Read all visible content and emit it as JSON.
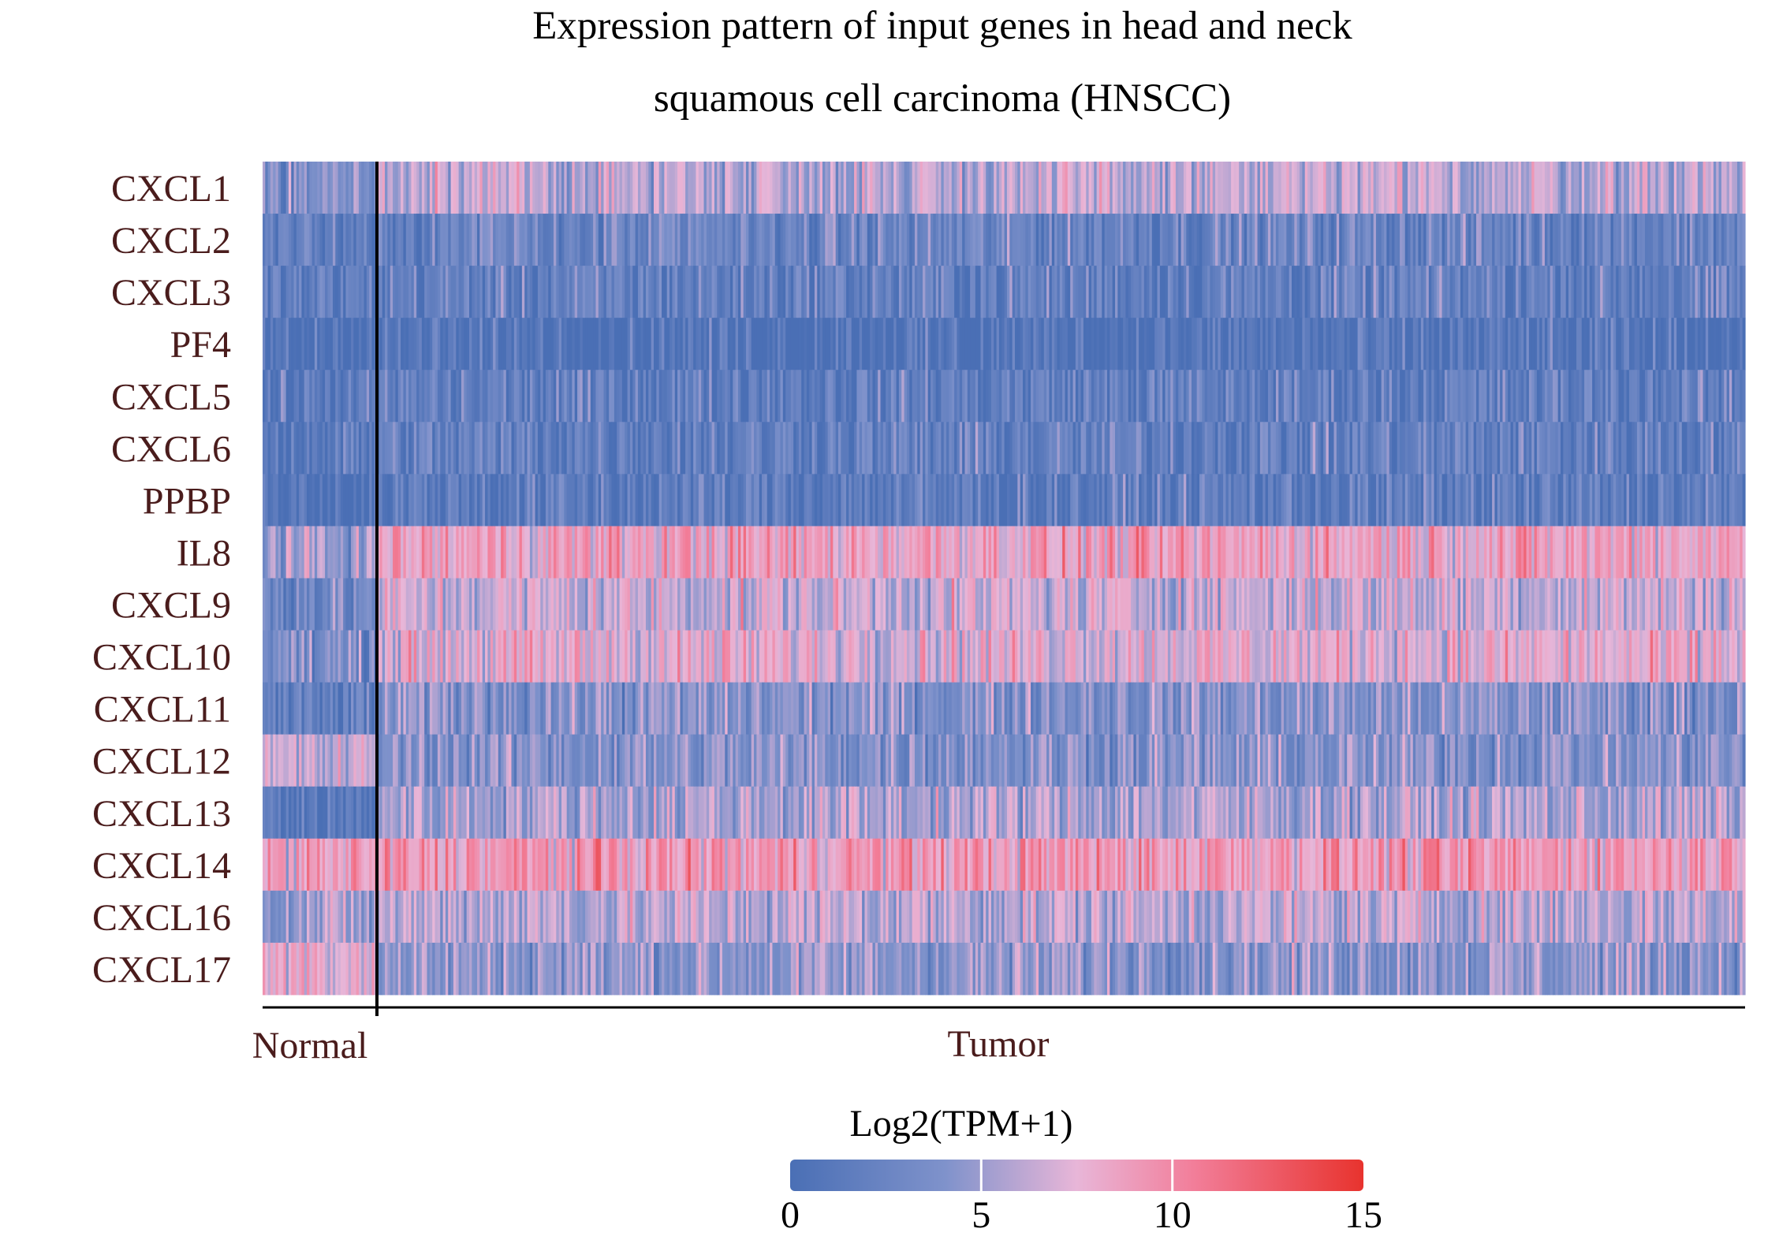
{
  "chart_data": {
    "type": "heatmap",
    "title_lines": [
      "Expression pattern of input genes in head and neck",
      "squamous cell carcinoma (HNSCC)"
    ],
    "genes": [
      "CXCL1",
      "CXCL2",
      "CXCL3",
      "PF4",
      "CXCL5",
      "CXCL6",
      "PPBP",
      "IL8",
      "CXCL9",
      "CXCL10",
      "CXCL11",
      "CXCL12",
      "CXCL13",
      "CXCL14",
      "CXCL16",
      "CXCL17"
    ],
    "groups": [
      {
        "name": "Normal",
        "sample_count": 44
      },
      {
        "name": "Tumor",
        "sample_count": 519
      }
    ],
    "row_profiles": {
      "CXCL1": {
        "Normal": 4.0,
        "Tumor": 6.0
      },
      "CXCL2": {
        "Normal": 2.0,
        "Tumor": 2.5
      },
      "CXCL3": {
        "Normal": 1.5,
        "Tumor": 2.0
      },
      "PF4": {
        "Normal": 0.3,
        "Tumor": 0.5
      },
      "CXCL5": {
        "Normal": 1.2,
        "Tumor": 1.8
      },
      "CXCL6": {
        "Normal": 1.5,
        "Tumor": 2.0
      },
      "PPBP": {
        "Normal": 0.5,
        "Tumor": 1.5
      },
      "IL8": {
        "Normal": 5.0,
        "Tumor": 8.5
      },
      "CXCL9": {
        "Normal": 3.0,
        "Tumor": 6.5
      },
      "CXCL10": {
        "Normal": 3.5,
        "Tumor": 7.5
      },
      "CXCL11": {
        "Normal": 1.5,
        "Tumor": 4.0
      },
      "CXCL12": {
        "Normal": 6.0,
        "Tumor": 4.0
      },
      "CXCL13": {
        "Normal": 1.0,
        "Tumor": 5.5
      },
      "CXCL14": {
        "Normal": 8.5,
        "Tumor": 9.0
      },
      "CXCL16": {
        "Normal": 5.0,
        "Tumor": 6.0
      },
      "CXCL17": {
        "Normal": 8.0,
        "Tumor": 4.5
      }
    },
    "colorbar": {
      "title": "Log2(TPM+1)",
      "min": 0,
      "max": 15,
      "ticks": [
        0,
        5,
        10,
        15
      ],
      "colors": [
        "#4a6fb5",
        "#7f92cb",
        "#e8b6d8",
        "#f27f9b",
        "#e8332e"
      ]
    }
  }
}
